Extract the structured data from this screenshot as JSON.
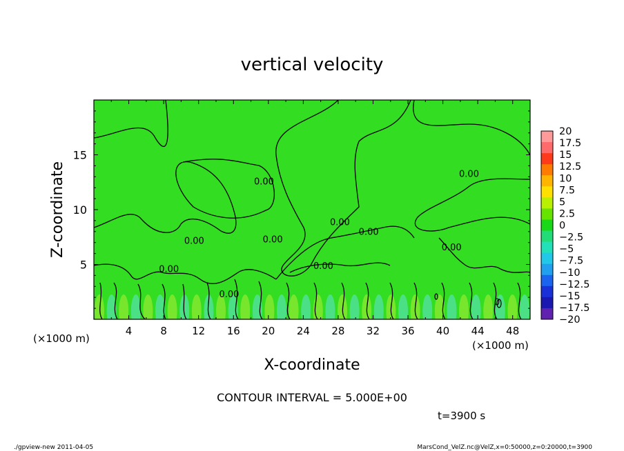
{
  "chart_data": {
    "type": "heatmap",
    "title": "vertical velocity",
    "xlabel": "X-coordinate",
    "ylabel": "Z-coordinate",
    "x_unit_left": "(×1000 m)",
    "x_unit_right": "(×1000 m)",
    "xlim": [
      0,
      50
    ],
    "ylim": [
      0,
      20
    ],
    "x_ticks": [
      4,
      8,
      12,
      16,
      20,
      24,
      28,
      32,
      36,
      40,
      44,
      48
    ],
    "y_ticks": [
      5,
      10,
      15
    ],
    "contour_interval_text": "CONTOUR INTERVAL = 5.000E+00",
    "time_text": "t=3900 s",
    "contour_labels": [
      {
        "text": "0.00",
        "x": 19.5,
        "y": 12.3
      },
      {
        "text": "0.00",
        "x": 43.0,
        "y": 13.0
      },
      {
        "text": "0.00",
        "x": 11.5,
        "y": 6.9
      },
      {
        "text": "0.00",
        "x": 20.5,
        "y": 7.0
      },
      {
        "text": "0.00",
        "x": 28.2,
        "y": 8.6
      },
      {
        "text": "0.00",
        "x": 31.5,
        "y": 7.7
      },
      {
        "text": "0.00",
        "x": 41.0,
        "y": 6.3
      },
      {
        "text": "0.00",
        "x": 8.6,
        "y": 4.3
      },
      {
        "text": "0.00",
        "x": 26.3,
        "y": 4.6
      },
      {
        "text": "0.00",
        "x": 15.5,
        "y": 2.0
      },
      {
        "text": "0",
        "x": 46.2,
        "y": 1.3
      }
    ],
    "colorbar": {
      "labels": [
        "20",
        "17.5",
        "15",
        "12.5",
        "10",
        "7.5",
        "5",
        "2.5",
        "0",
        "−2.5",
        "−5",
        "−7.5",
        "−10",
        "−12.5",
        "−15",
        "−17.5",
        "−20"
      ],
      "colors": [
        "#ff9a9a",
        "#ff6a6a",
        "#ff3a1a",
        "#ff7a00",
        "#ffb400",
        "#ffe000",
        "#b8f000",
        "#66e400",
        "#18d818",
        "#22dd77",
        "#22e0b8",
        "#22c8e8",
        "#22a0f0",
        "#1a64f0",
        "#1a30d8",
        "#1a18b0",
        "#6020b0"
      ]
    },
    "field_description_levels": {
      "background": "#33dd22",
      "updraft": "#90e830",
      "downdraft": "#55e0a8"
    }
  },
  "footer": {
    "left": "./gpview-new  2011-04-05",
    "right": "MarsCond_VelZ.nc@VelZ,x=0:50000,z=0:20000,t=3900"
  }
}
